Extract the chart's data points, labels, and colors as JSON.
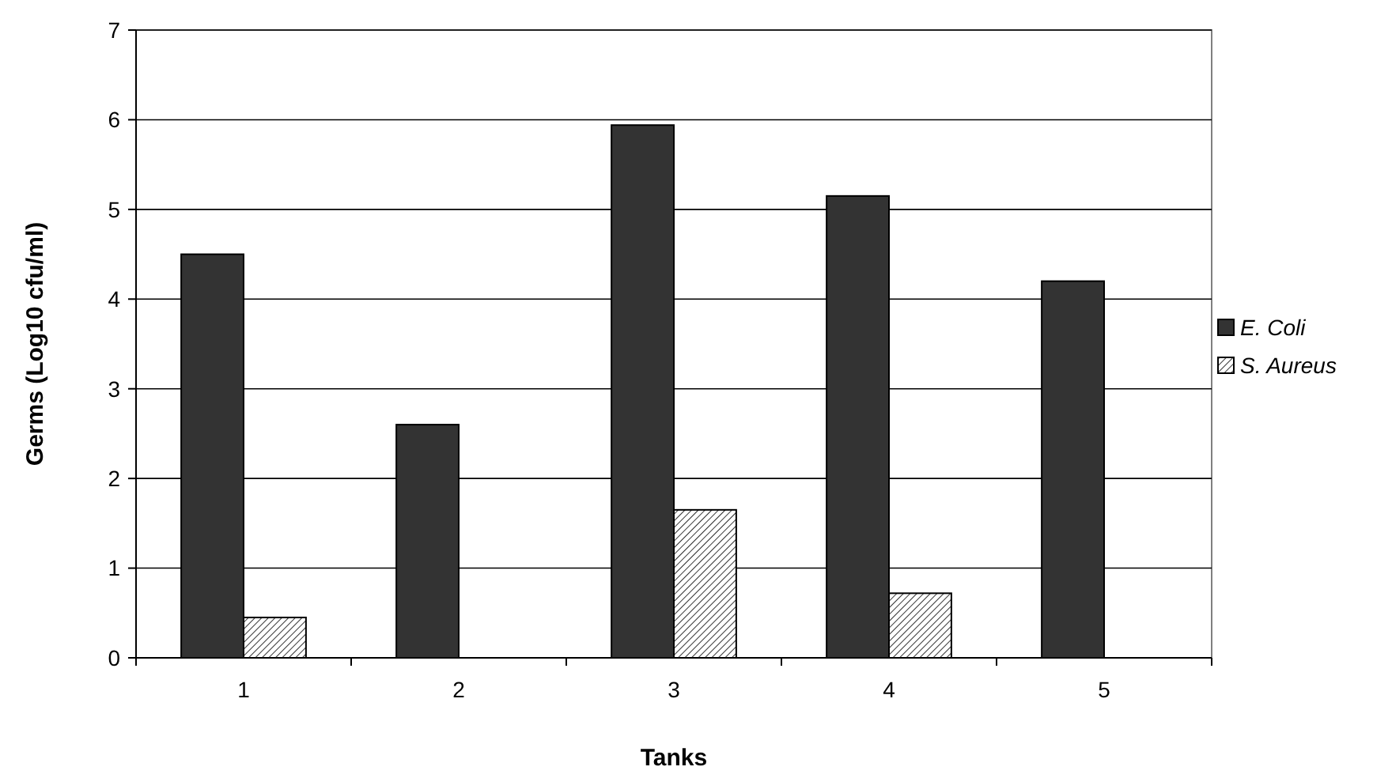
{
  "chart_data": {
    "type": "bar",
    "xlabel": "Tanks",
    "ylabel": "Germs (Log10 cfu/ml)",
    "categories": [
      "1",
      "2",
      "3",
      "4",
      "5"
    ],
    "series": [
      {
        "name": "E. Coli",
        "color": "#333333",
        "values": [
          4.5,
          2.6,
          5.94,
          5.15,
          4.2
        ]
      },
      {
        "name": "S. Aureus",
        "color": "#000000",
        "values": [
          0.45,
          null,
          1.65,
          0.72,
          null
        ]
      }
    ],
    "ylim": [
      0,
      7
    ],
    "yticks": [
      0,
      1,
      2,
      3,
      4,
      5,
      6,
      7
    ],
    "grid": "y",
    "legend": "right"
  }
}
